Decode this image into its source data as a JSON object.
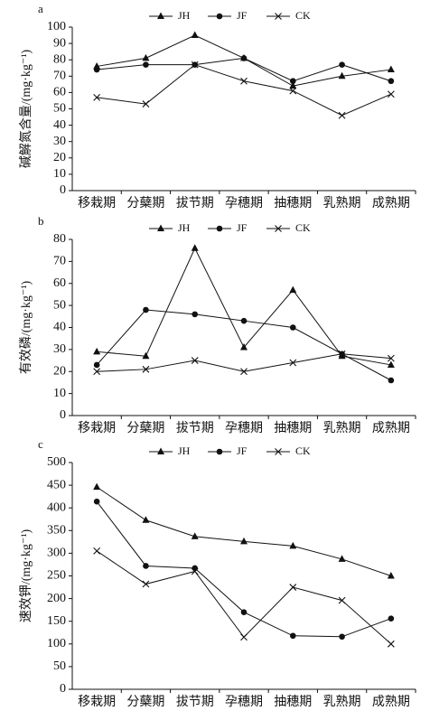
{
  "chart_data": [
    {
      "type": "line",
      "title": "a",
      "y_label": "碱解氮含量/(mg·kg⁻¹)",
      "categories": [
        "移栽期",
        "分蘖期",
        "拔节期",
        "孕穗期",
        "抽穗期",
        "乳熟期",
        "成熟期"
      ],
      "series": [
        {
          "name": "JH",
          "color": "#111111",
          "marker": "triangle",
          "values": [
            76,
            81,
            95,
            81,
            64,
            70,
            74
          ]
        },
        {
          "name": "JF",
          "color": "#111111",
          "marker": "circle",
          "values": [
            74,
            77,
            77,
            81,
            67,
            77,
            67
          ]
        },
        {
          "name": "CK",
          "color": "#111111",
          "marker": "x",
          "values": [
            57,
            53,
            77,
            67,
            61,
            46,
            59
          ]
        }
      ],
      "ylim": [
        0,
        100
      ],
      "yticks": [
        0,
        10,
        20,
        30,
        40,
        50,
        60,
        70,
        80,
        90,
        100
      ]
    },
    {
      "type": "line",
      "title": "b",
      "y_label": "有效磷/(mg·kg⁻¹)",
      "categories": [
        "移栽期",
        "分蘖期",
        "拔节期",
        "孕穗期",
        "抽穗期",
        "乳熟期",
        "成熟期"
      ],
      "series": [
        {
          "name": "JH",
          "color": "#111111",
          "marker": "triangle",
          "values": [
            29,
            27,
            76,
            31,
            57,
            27,
            23
          ]
        },
        {
          "name": "JF",
          "color": "#111111",
          "marker": "circle",
          "values": [
            23,
            48,
            46,
            43,
            40,
            28,
            16
          ]
        },
        {
          "name": "CK",
          "color": "#111111",
          "marker": "x",
          "values": [
            20,
            21,
            25,
            20,
            24,
            28,
            26
          ]
        }
      ],
      "ylim": [
        0,
        80
      ],
      "yticks": [
        0,
        10,
        20,
        30,
        40,
        50,
        60,
        70,
        80
      ]
    },
    {
      "type": "line",
      "title": "c",
      "y_label": "速效钾/(mg·kg⁻¹)",
      "categories": [
        "移栽期",
        "分蘖期",
        "拔节期",
        "孕穗期",
        "抽穗期",
        "乳熟期",
        "成熟期"
      ],
      "series": [
        {
          "name": "JH",
          "color": "#111111",
          "marker": "triangle",
          "values": [
            446,
            373,
            337,
            326,
            316,
            287,
            250
          ]
        },
        {
          "name": "JF",
          "color": "#111111",
          "marker": "circle",
          "values": [
            414,
            272,
            267,
            170,
            118,
            116,
            156
          ]
        },
        {
          "name": "CK",
          "color": "#111111",
          "marker": "x",
          "values": [
            305,
            232,
            260,
            115,
            225,
            196,
            100
          ]
        }
      ],
      "ylim": [
        0,
        500
      ],
      "yticks": [
        0,
        50,
        100,
        150,
        200,
        250,
        300,
        350,
        400,
        450,
        500
      ]
    }
  ]
}
